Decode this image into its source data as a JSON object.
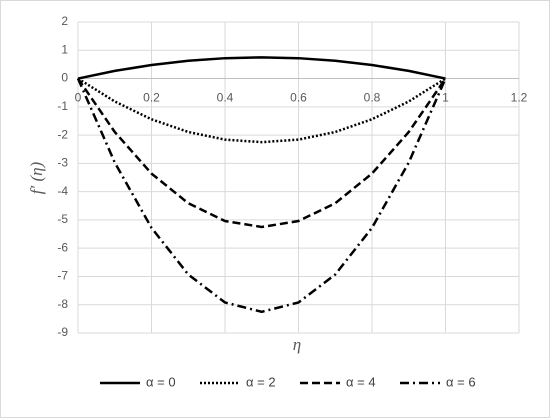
{
  "chart_data": {
    "type": "line",
    "x_label": "η",
    "y_label": "f′ (η)",
    "x": [
      0,
      0.1,
      0.2,
      0.3,
      0.4,
      0.5,
      0.6,
      0.7,
      0.8,
      0.9,
      1
    ],
    "series": [
      {
        "name": "α = 0",
        "color": "#000000",
        "dash": "solid",
        "values": [
          0,
          0.27,
          0.48,
          0.63,
          0.72,
          0.75,
          0.72,
          0.63,
          0.48,
          0.27,
          0
        ]
      },
      {
        "name": "α = 2",
        "color": "#000000",
        "dash": "dotted",
        "values": [
          0,
          -0.81,
          -1.44,
          -1.89,
          -2.16,
          -2.25,
          -2.16,
          -1.89,
          -1.44,
          -0.81,
          0
        ]
      },
      {
        "name": "α = 4",
        "color": "#000000",
        "dash": "dashed",
        "values": [
          0,
          -1.89,
          -3.36,
          -4.41,
          -5.04,
          -5.25,
          -5.04,
          -4.41,
          -3.36,
          -1.89,
          0
        ]
      },
      {
        "name": "α = 6",
        "color": "#000000",
        "dash": "dashdot",
        "values": [
          0,
          -2.97,
          -5.28,
          -6.93,
          -7.92,
          -8.25,
          -7.92,
          -6.93,
          -5.28,
          -2.97,
          0
        ]
      }
    ],
    "xlim": [
      0,
      1.2
    ],
    "xticks": [
      0,
      0.2,
      0.4,
      0.6,
      0.8,
      1,
      1.2
    ],
    "ylim": [
      -9,
      2
    ],
    "yticks": [
      -9,
      -8,
      -7,
      -6,
      -5,
      -4,
      -3,
      -2,
      -1,
      0,
      1,
      2
    ],
    "grid": true,
    "legend": "bottom"
  }
}
